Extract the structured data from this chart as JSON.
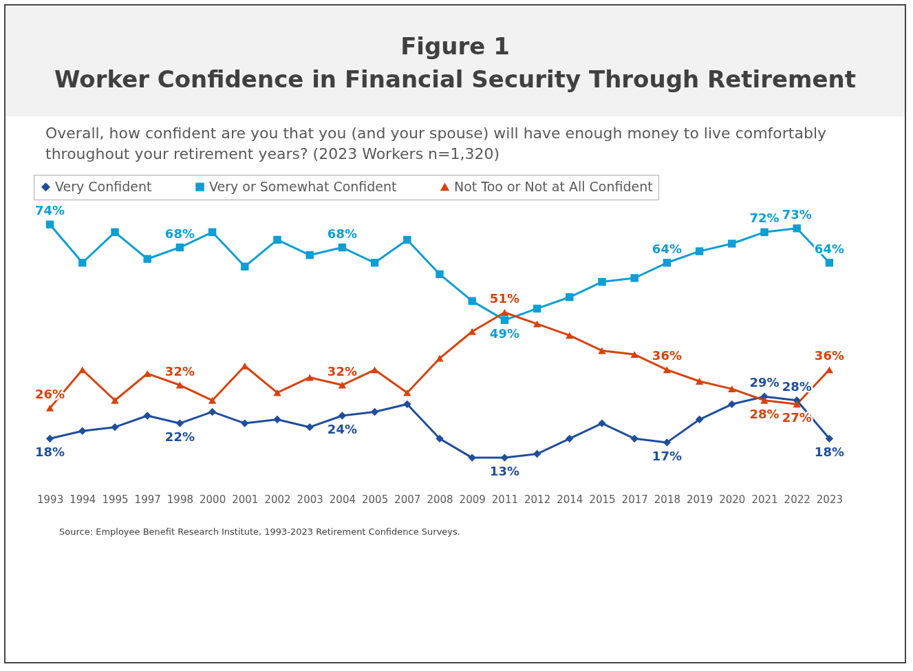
{
  "chart_data": {
    "type": "line",
    "title": "Figure 1\nWorker Confidence in Financial Security Through Retirement",
    "subtitle": "Overall, how confident are you that you (and your spouse) will have enough money to live comfortably throughout your retirement years? (2023 Workers n=1,320)",
    "categories": [
      "1993",
      "1994",
      "1995",
      "1997",
      "1998",
      "2000",
      "2001",
      "2002",
      "2003",
      "2004",
      "2005",
      "2007",
      "2008",
      "2009",
      "2011",
      "2012",
      "2014",
      "2015",
      "2017",
      "2018",
      "2019",
      "2020",
      "2021",
      "2022",
      "2023"
    ],
    "series": [
      {
        "name": "Very Confident",
        "color": "#1f4e9c",
        "marker": "diamond",
        "values": [
          18,
          20,
          21,
          24,
          22,
          25,
          22,
          23,
          21,
          24,
          25,
          27,
          18,
          13,
          13,
          14,
          18,
          22,
          18,
          17,
          23,
          27,
          29,
          28,
          18
        ],
        "value_labels": [
          "18%",
          null,
          null,
          null,
          "22%",
          null,
          null,
          null,
          null,
          "24%",
          null,
          null,
          null,
          null,
          "13%",
          null,
          null,
          null,
          null,
          "17%",
          null,
          null,
          "29%",
          "28%",
          "18%"
        ]
      },
      {
        "name": "Very or Somewhat Confident",
        "color": "#0d9ed6",
        "marker": "square",
        "values": [
          74,
          64,
          72,
          65,
          68,
          72,
          63,
          70,
          66,
          68,
          64,
          70,
          61,
          54,
          49,
          52,
          55,
          59,
          60,
          64,
          67,
          69,
          72,
          73,
          64
        ],
        "value_labels": [
          "74%",
          null,
          null,
          null,
          "68%",
          null,
          null,
          null,
          null,
          "68%",
          null,
          null,
          null,
          null,
          "49%",
          null,
          null,
          null,
          null,
          "64%",
          null,
          null,
          "72%",
          "73%",
          "64%"
        ]
      },
      {
        "name": "Not Too or Not at All Confident",
        "color": "#d9410b",
        "marker": "triangle",
        "values": [
          26,
          36,
          28,
          35,
          32,
          28,
          37,
          30,
          34,
          32,
          36,
          30,
          39,
          46,
          51,
          48,
          45,
          41,
          40,
          36,
          33,
          31,
          28,
          27,
          36
        ],
        "value_labels": [
          "26%",
          null,
          null,
          null,
          "32%",
          null,
          null,
          null,
          null,
          "32%",
          null,
          null,
          null,
          null,
          "51%",
          null,
          null,
          null,
          null,
          "36%",
          null,
          null,
          "28%",
          "27%",
          "36%"
        ]
      }
    ],
    "legend": "top",
    "tick_labels": "x",
    "grid": false,
    "annotations": [
      "Source:  Employee Benefit Research Institute, 1993-2023 Retirement Confidence Surveys."
    ]
  }
}
